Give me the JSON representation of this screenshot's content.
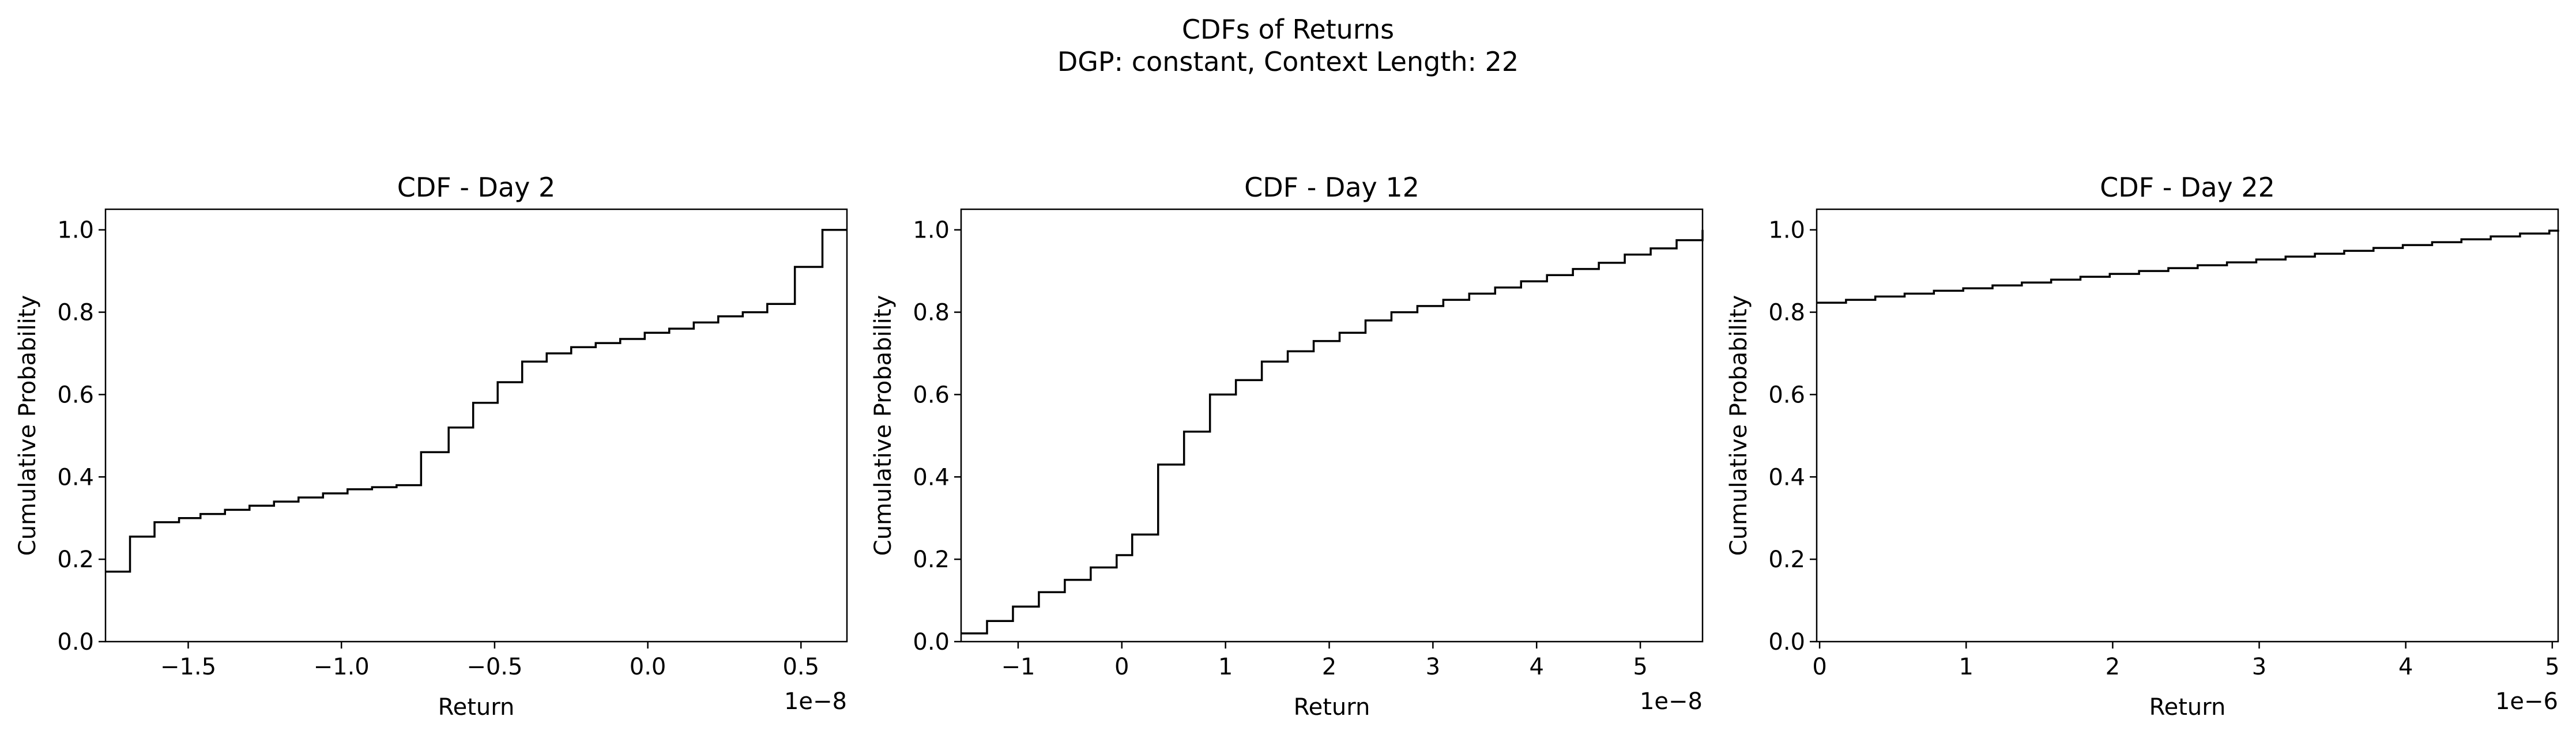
{
  "figure": {
    "title_line1": "CDFs of Returns",
    "title_line2": "DGP: constant, Context Length: 22"
  },
  "chart_data": [
    {
      "type": "step",
      "title": "CDF - Day 2",
      "xlabel": "Return",
      "ylabel": "Cumulative Probability",
      "x_offset_text": "1e−8",
      "x_unit_scale": 1e-08,
      "xlim": [
        -1.77,
        0.65
      ],
      "ylim": [
        0,
        1.05
      ],
      "xticks": [
        -1.5,
        -1.0,
        -0.5,
        0.0,
        0.5
      ],
      "xtick_labels": [
        "−1.5",
        "−1.0",
        "−0.5",
        "0.0",
        "0.5"
      ],
      "yticks": [
        0.0,
        0.2,
        0.4,
        0.6,
        0.8,
        1.0
      ],
      "ytick_labels": [
        "0.0",
        "0.2",
        "0.4",
        "0.6",
        "0.8",
        "1.0"
      ],
      "grid": false,
      "color": "#000000",
      "x": [
        -1.77,
        -1.69,
        -1.61,
        -1.53,
        -1.46,
        -1.38,
        -1.3,
        -1.22,
        -1.14,
        -1.06,
        -0.98,
        -0.9,
        -0.82,
        -0.74,
        -0.65,
        -0.57,
        -0.49,
        -0.41,
        -0.33,
        -0.25,
        -0.17,
        -0.09,
        -0.01,
        0.07,
        0.15,
        0.23,
        0.31,
        0.39,
        0.48,
        0.57,
        0.65
      ],
      "y": [
        0.17,
        0.255,
        0.29,
        0.3,
        0.31,
        0.32,
        0.33,
        0.34,
        0.35,
        0.36,
        0.37,
        0.375,
        0.38,
        0.46,
        0.52,
        0.58,
        0.63,
        0.68,
        0.7,
        0.715,
        0.725,
        0.735,
        0.75,
        0.76,
        0.775,
        0.79,
        0.8,
        0.82,
        0.91,
        1.0,
        1.0
      ]
    },
    {
      "type": "step",
      "title": "CDF - Day 12",
      "xlabel": "Return",
      "ylabel": "Cumulative Probability",
      "x_offset_text": "1e−8",
      "x_unit_scale": 1e-08,
      "xlim": [
        -1.55,
        5.6
      ],
      "ylim": [
        0,
        1.05
      ],
      "xticks": [
        -1,
        0,
        1,
        2,
        3,
        4,
        5
      ],
      "xtick_labels": [
        "−1",
        "0",
        "1",
        "2",
        "3",
        "4",
        "5"
      ],
      "yticks": [
        0.0,
        0.2,
        0.4,
        0.6,
        0.8,
        1.0
      ],
      "ytick_labels": [
        "0.0",
        "0.2",
        "0.4",
        "0.6",
        "0.8",
        "1.0"
      ],
      "grid": false,
      "color": "#000000",
      "x": [
        -1.55,
        -1.3,
        -1.05,
        -0.8,
        -0.55,
        -0.3,
        -0.05,
        0.1,
        0.35,
        0.6,
        0.85,
        1.1,
        1.35,
        1.6,
        1.85,
        2.1,
        2.35,
        2.6,
        2.85,
        3.1,
        3.35,
        3.6,
        3.85,
        4.1,
        4.35,
        4.6,
        4.85,
        5.1,
        5.35,
        5.6
      ],
      "y": [
        0.02,
        0.05,
        0.085,
        0.12,
        0.15,
        0.18,
        0.21,
        0.26,
        0.43,
        0.51,
        0.6,
        0.635,
        0.68,
        0.705,
        0.73,
        0.75,
        0.78,
        0.8,
        0.815,
        0.83,
        0.845,
        0.86,
        0.875,
        0.89,
        0.905,
        0.92,
        0.94,
        0.955,
        0.975,
        1.0
      ]
    },
    {
      "type": "step",
      "title": "CDF - Day 22",
      "xlabel": "Return",
      "ylabel": "Cumulative Probability",
      "x_offset_text": "1e−6",
      "x_unit_scale": 1e-06,
      "xlim": [
        -0.02,
        5.04
      ],
      "ylim": [
        0,
        1.05
      ],
      "xticks": [
        0,
        1,
        2,
        3,
        4,
        5
      ],
      "xtick_labels": [
        "0",
        "1",
        "2",
        "3",
        "4",
        "5"
      ],
      "yticks": [
        0.0,
        0.2,
        0.4,
        0.6,
        0.8,
        1.0
      ],
      "ytick_labels": [
        "0.0",
        "0.2",
        "0.4",
        "0.6",
        "0.8",
        "1.0"
      ],
      "grid": false,
      "color": "#000000",
      "x": [
        -0.02,
        0.18,
        0.38,
        0.58,
        0.78,
        0.98,
        1.18,
        1.38,
        1.58,
        1.78,
        1.98,
        2.18,
        2.38,
        2.58,
        2.78,
        2.98,
        3.18,
        3.38,
        3.58,
        3.78,
        3.98,
        4.18,
        4.38,
        4.58,
        4.78,
        4.98,
        5.04
      ],
      "y": [
        0.823,
        0.83,
        0.838,
        0.845,
        0.852,
        0.858,
        0.865,
        0.872,
        0.879,
        0.886,
        0.893,
        0.9,
        0.907,
        0.914,
        0.921,
        0.928,
        0.935,
        0.942,
        0.949,
        0.956,
        0.963,
        0.97,
        0.977,
        0.984,
        0.991,
        0.998,
        1.0
      ]
    }
  ]
}
